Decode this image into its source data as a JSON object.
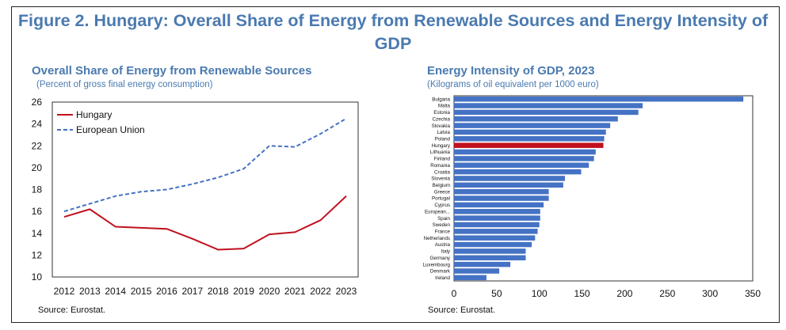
{
  "figure_title": "Figure 2. Hungary: Overall Share of Energy from Renewable Sources and Energy Intensity of GDP",
  "colors": {
    "accent": "#4a7ab0",
    "hungary": "#c0111f",
    "eu": "#4472c4",
    "bar": "#4472c4"
  },
  "left_panel": {
    "title": "Overall Share of Energy from Renewable Sources",
    "subtitle": "(Percent of gross final energy consumption)",
    "source": "Source: Eurostat."
  },
  "right_panel": {
    "title": "Energy Intensity of GDP, 2023",
    "subtitle": "(Kilograms of oil equivalent per 1000 euro)",
    "source": "Source: Eurostat."
  },
  "chart_data": [
    {
      "type": "line",
      "title": "Overall Share of Energy from Renewable Sources",
      "x": [
        2012,
        2013,
        2014,
        2015,
        2016,
        2017,
        2018,
        2019,
        2020,
        2021,
        2022,
        2023
      ],
      "xticks": [
        "2012",
        "2013",
        "2014",
        "2015",
        "2016",
        "2017",
        "2018",
        "2019",
        "2020",
        "2021",
        "2022",
        "2023"
      ],
      "ylim": [
        10,
        26
      ],
      "yticks": [
        10,
        12,
        14,
        16,
        18,
        20,
        22,
        24,
        26
      ],
      "legend_position": "top-left",
      "series": [
        {
          "name": "Hungary",
          "style": "solid",
          "color": "#c0111f",
          "values": [
            15.5,
            16.2,
            14.6,
            14.5,
            14.4,
            13.5,
            12.5,
            12.6,
            13.9,
            14.1,
            15.2,
            17.4
          ]
        },
        {
          "name": "European Union",
          "style": "dashed",
          "color": "#4472c4",
          "values": [
            16.0,
            16.7,
            17.4,
            17.8,
            18.0,
            18.5,
            19.1,
            19.9,
            22.0,
            21.9,
            23.1,
            24.5
          ]
        }
      ]
    },
    {
      "type": "bar",
      "orientation": "horizontal",
      "title": "Energy Intensity of GDP, 2023",
      "xlim": [
        0,
        350
      ],
      "xticks": [
        0,
        50,
        100,
        150,
        200,
        250,
        300,
        350
      ],
      "highlight": "Hungary",
      "categories": [
        "Bulgaria",
        "Malta",
        "Estonia",
        "Czechia",
        "Slovakia",
        "Latvia",
        "Poland",
        "Hungary",
        "Lithuania",
        "Finland",
        "Romania",
        "Croatia",
        "Slovenia",
        "Belgium",
        "Greece",
        "Portugal",
        "Cyprus",
        "European...",
        "Spain",
        "Sweden",
        "France",
        "Netherlands",
        "Austria",
        "Italy",
        "Germany",
        "Luxembourg",
        "Denmark",
        "Ireland"
      ],
      "values": [
        339,
        221,
        216,
        192,
        183,
        178,
        176,
        175,
        166,
        164,
        158,
        149,
        130,
        128,
        111,
        111,
        105,
        101,
        101,
        100,
        98,
        95,
        91,
        84,
        84,
        66,
        53,
        38
      ]
    }
  ]
}
